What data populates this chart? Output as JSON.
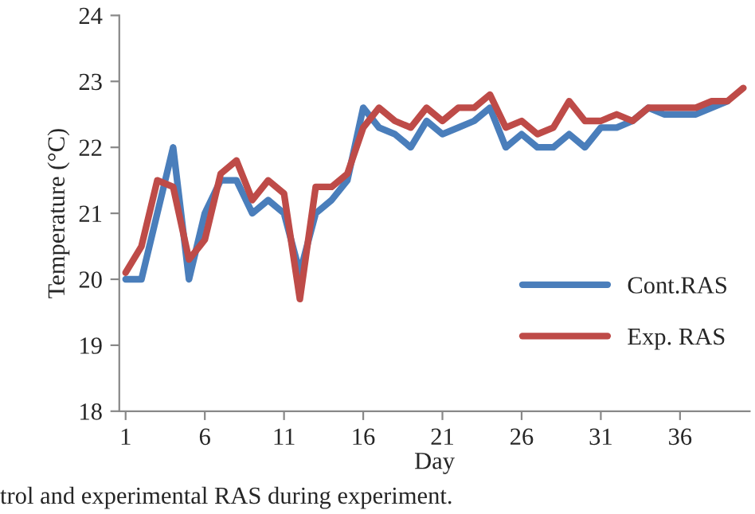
{
  "chart_data": {
    "type": "line",
    "xlabel": "Day",
    "ylabel": "Temperature (°C)",
    "x": [
      1,
      2,
      3,
      4,
      5,
      6,
      7,
      8,
      9,
      10,
      11,
      12,
      13,
      14,
      15,
      16,
      17,
      18,
      19,
      20,
      21,
      22,
      23,
      24,
      25,
      26,
      27,
      28,
      29,
      30,
      31,
      32,
      33,
      34,
      35,
      36,
      37,
      38,
      39,
      40
    ],
    "series": [
      {
        "name": "Cont.RAS",
        "color": "#4a7ebb",
        "values": [
          20,
          20,
          21,
          22,
          20,
          21,
          21.5,
          21.5,
          21,
          21.2,
          21,
          20.1,
          21,
          21.2,
          21.5,
          22.6,
          22.3,
          22.2,
          22,
          22.4,
          22.2,
          22.3,
          22.4,
          22.6,
          22,
          22.2,
          22,
          22,
          22.2,
          22,
          22.3,
          22.3,
          22.4,
          22.6,
          22.5,
          22.5,
          22.5,
          22.6,
          22.7,
          null
        ]
      },
      {
        "name": "Exp. RAS",
        "color": "#be4b48",
        "values": [
          20.1,
          20.5,
          21.5,
          21.4,
          20.3,
          20.6,
          21.6,
          21.8,
          21.2,
          21.5,
          21.3,
          19.7,
          21.4,
          21.4,
          21.6,
          22.3,
          22.6,
          22.4,
          22.3,
          22.6,
          22.4,
          22.6,
          22.6,
          22.8,
          22.3,
          22.4,
          22.2,
          22.3,
          22.7,
          22.4,
          22.4,
          22.5,
          22.4,
          22.6,
          22.6,
          22.6,
          22.6,
          22.7,
          22.7,
          22.9
        ]
      }
    ],
    "xlim": [
      0.6,
      40.4
    ],
    "xticks": [
      1,
      6,
      11,
      16,
      21,
      26,
      31,
      36
    ],
    "ylim": [
      18,
      24
    ],
    "yticks": [
      18,
      19,
      20,
      21,
      22,
      23,
      24
    ],
    "grid": false,
    "legend": "lower right",
    "line_style": "solid",
    "marker": "none",
    "annotations": [
      "trol and experimental RAS during experiment."
    ]
  }
}
